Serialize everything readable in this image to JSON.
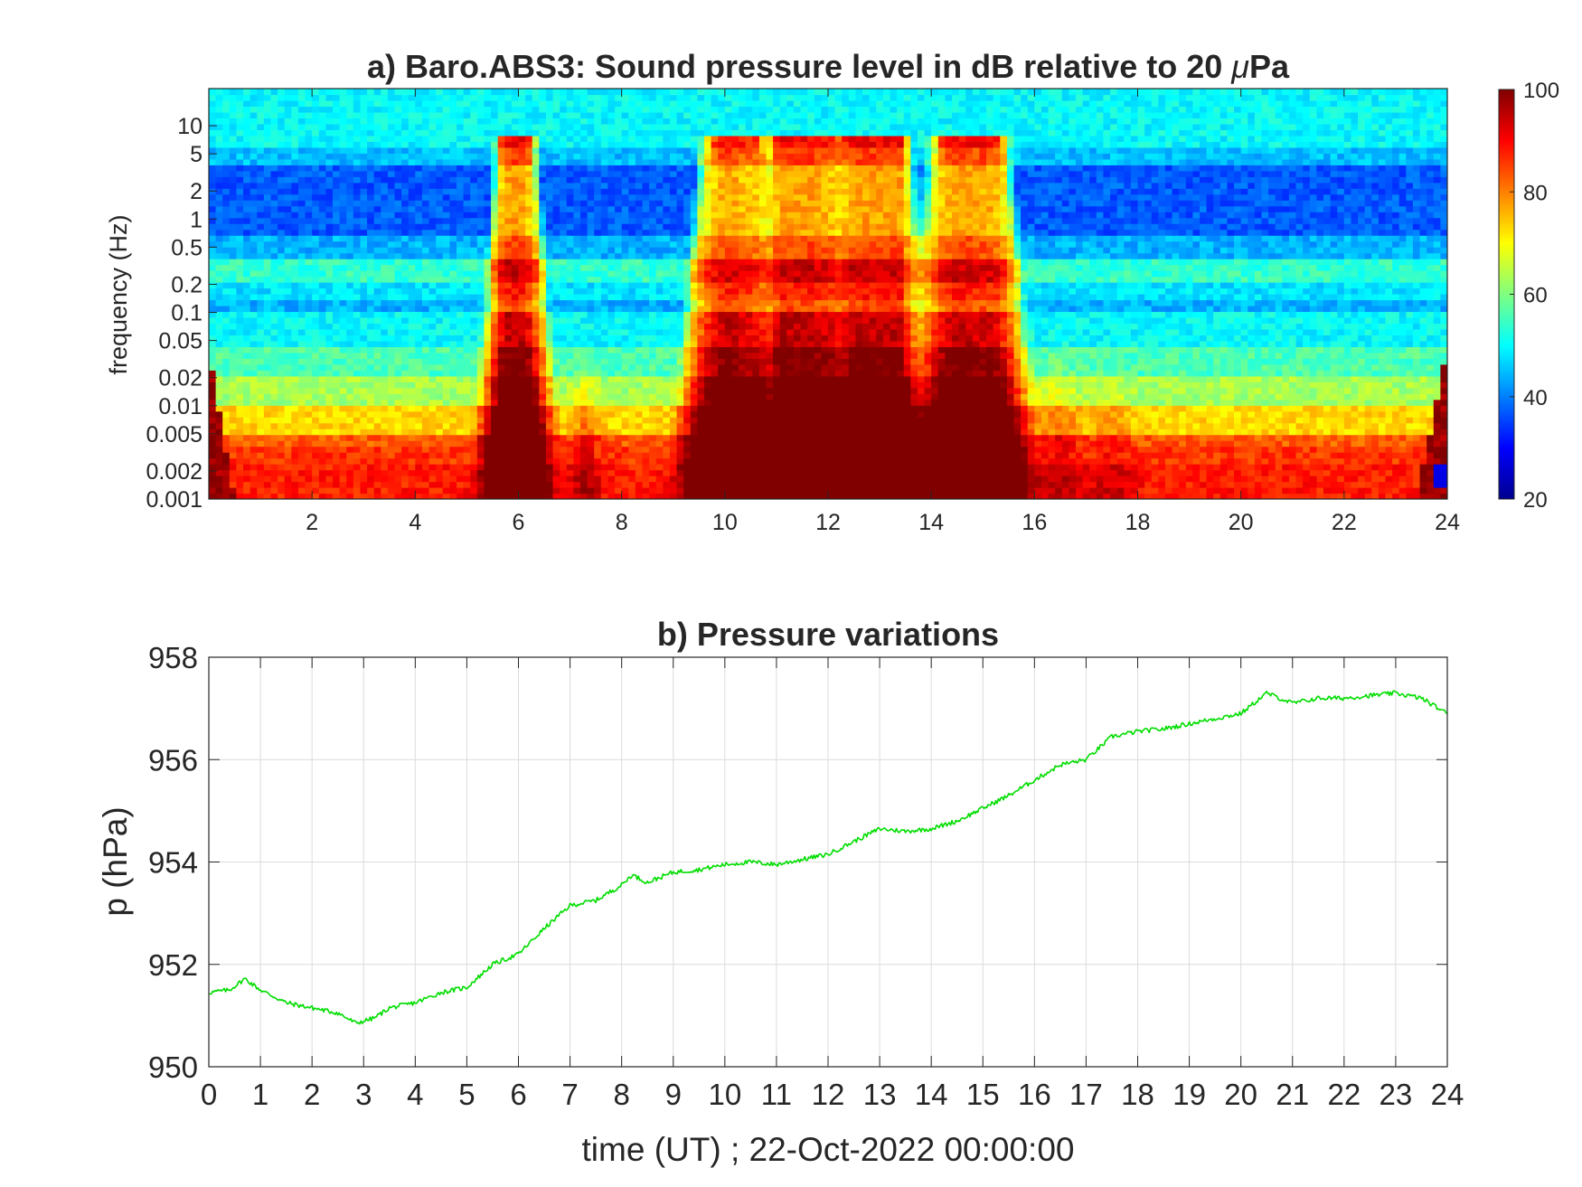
{
  "chart_data": [
    {
      "type": "heatmap",
      "title_prefix": "a) Baro.ABS3: Sound pressure level in dB relative to 20 ",
      "title_mu": "μ",
      "title_suffix": "Pa",
      "ylabel": "frequency (Hz)",
      "xlabel": "",
      "x_range": [
        0,
        24
      ],
      "y_range": [
        0.001,
        25
      ],
      "y_scale": "log",
      "x_ticks": [
        2,
        4,
        6,
        8,
        10,
        12,
        14,
        16,
        18,
        20,
        22,
        24
      ],
      "y_ticks": [
        {
          "value": 0.001,
          "label": "0.001"
        },
        {
          "value": 0.002,
          "label": "0.002"
        },
        {
          "value": 0.005,
          "label": "0.005"
        },
        {
          "value": 0.01,
          "label": "0.01"
        },
        {
          "value": 0.02,
          "label": "0.02"
        },
        {
          "value": 0.05,
          "label": "0.05"
        },
        {
          "value": 0.1,
          "label": "0.1"
        },
        {
          "value": 0.2,
          "label": "0.2"
        },
        {
          "value": 0.5,
          "label": "0.5"
        },
        {
          "value": 1,
          "label": "1"
        },
        {
          "value": 2,
          "label": "2"
        },
        {
          "value": 5,
          "label": "5"
        },
        {
          "value": 10,
          "label": "10"
        }
      ],
      "colorbar": {
        "colormap": "jet",
        "range": [
          20,
          100
        ],
        "ticks": [
          20,
          40,
          60,
          80,
          100
        ]
      },
      "approx_activity_hours": {
        "quiet_periods": [
          [
            0,
            5.3
          ],
          [
            7.2,
            9.2
          ],
          [
            16,
            24
          ]
        ],
        "strong_broadband_bursts": [
          [
            5.3,
            7.2
          ],
          [
            9.2,
            16
          ]
        ]
      }
    },
    {
      "type": "line",
      "title": "b) Pressure variations",
      "xlabel": "time (UT) ; 22-Oct-2022 00:00:00",
      "ylabel": "p (hPa)",
      "x_range": [
        0,
        24
      ],
      "y_range": [
        950,
        958
      ],
      "x_ticks": [
        0,
        1,
        2,
        3,
        4,
        5,
        6,
        7,
        8,
        9,
        10,
        11,
        12,
        13,
        14,
        15,
        16,
        17,
        18,
        19,
        20,
        21,
        22,
        23,
        24
      ],
      "y_ticks": [
        950,
        952,
        954,
        956,
        958
      ],
      "grid": true,
      "series_color": "#00dd00",
      "series": [
        {
          "x": [
            0,
            0.4,
            0.7,
            1.0,
            1.5,
            2.0,
            2.5,
            2.85,
            3.2,
            3.5,
            4.0,
            4.5,
            5.0,
            5.5,
            6.0,
            6.5,
            7.0,
            7.5,
            8.0,
            8.2,
            8.5,
            9.0,
            9.5,
            10.0,
            10.5,
            11.0,
            11.5,
            12.0,
            12.5,
            13.0,
            13.5,
            14.0,
            14.5,
            15.0,
            15.5,
            16.0,
            16.5,
            17.0,
            17.5,
            18.0,
            18.5,
            19.0,
            19.5,
            20.0,
            20.5,
            21.0,
            21.5,
            22.0,
            22.5,
            23.0,
            23.5,
            24.0
          ],
          "y": [
            951.45,
            951.5,
            951.72,
            951.5,
            951.25,
            951.15,
            951.05,
            950.85,
            950.95,
            951.15,
            951.25,
            951.45,
            951.55,
            952.0,
            952.2,
            952.7,
            953.15,
            953.25,
            953.55,
            953.75,
            953.6,
            953.8,
            953.85,
            953.95,
            954.0,
            953.95,
            954.05,
            954.15,
            954.4,
            954.65,
            954.6,
            954.65,
            954.8,
            955.05,
            955.3,
            955.6,
            955.9,
            956.0,
            956.45,
            956.55,
            956.6,
            956.7,
            956.8,
            956.9,
            957.3,
            957.1,
            957.2,
            957.2,
            957.25,
            957.3,
            957.2,
            956.9
          ]
        }
      ]
    }
  ]
}
